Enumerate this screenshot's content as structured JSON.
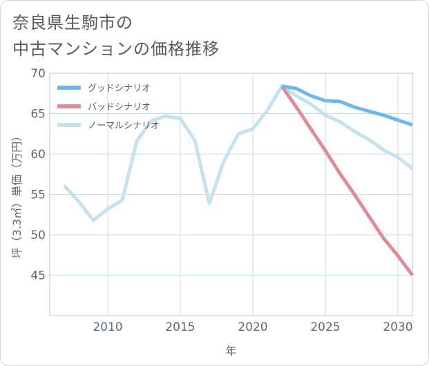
{
  "chart_data": {
    "type": "line",
    "title_lines": [
      "奈良県生駒市の",
      "中古マンションの価格推移"
    ],
    "xlabel": "年",
    "ylabel": "坪（3.3㎡）単価（万円）",
    "xlim": [
      2006,
      2031
    ],
    "ylim": [
      40,
      70
    ],
    "x_ticks": [
      2010,
      2015,
      2020,
      2025,
      2030
    ],
    "y_ticks": [
      45,
      50,
      55,
      60,
      65,
      70
    ],
    "grid": true,
    "legend_position": "top-left",
    "series": [
      {
        "name": "グッドシナリオ",
        "color": "#6bb8ec",
        "points": [
          [
            2022,
            68.4
          ],
          [
            2023,
            68.1
          ],
          [
            2024,
            67.2
          ],
          [
            2025,
            66.6
          ],
          [
            2026,
            66.5
          ],
          [
            2027,
            65.8
          ],
          [
            2028,
            65.3
          ],
          [
            2029,
            64.8
          ],
          [
            2030,
            64.2
          ],
          [
            2031,
            63.6
          ]
        ]
      },
      {
        "name": "バッドシナリオ",
        "color": "#de8c96",
        "points": [
          [
            2022,
            68.4
          ],
          [
            2023,
            65.8
          ],
          [
            2024,
            63.1
          ],
          [
            2025,
            60.4
          ],
          [
            2026,
            57.6
          ],
          [
            2027,
            55.0
          ],
          [
            2028,
            52.3
          ],
          [
            2029,
            49.6
          ],
          [
            2030,
            47.4
          ],
          [
            2031,
            45.0
          ]
        ]
      },
      {
        "name": "ノーマルシナリオ",
        "color": "#c5e2ee",
        "points": [
          [
            2007,
            56.1
          ],
          [
            2008,
            54.1
          ],
          [
            2009,
            51.8
          ],
          [
            2010,
            53.2
          ],
          [
            2011,
            54.3
          ],
          [
            2012,
            61.6
          ],
          [
            2013,
            64.1
          ],
          [
            2014,
            64.7
          ],
          [
            2015,
            64.4
          ],
          [
            2016,
            61.7
          ],
          [
            2017,
            53.9
          ],
          [
            2018,
            59.1
          ],
          [
            2019,
            62.5
          ],
          [
            2020,
            63.1
          ],
          [
            2021,
            65.4
          ],
          [
            2022,
            68.4
          ],
          [
            2023,
            67.2
          ],
          [
            2024,
            66.2
          ],
          [
            2025,
            64.8
          ],
          [
            2026,
            64.0
          ],
          [
            2027,
            62.8
          ],
          [
            2028,
            61.8
          ],
          [
            2029,
            60.5
          ],
          [
            2030,
            59.6
          ],
          [
            2031,
            58.2
          ]
        ]
      }
    ]
  }
}
